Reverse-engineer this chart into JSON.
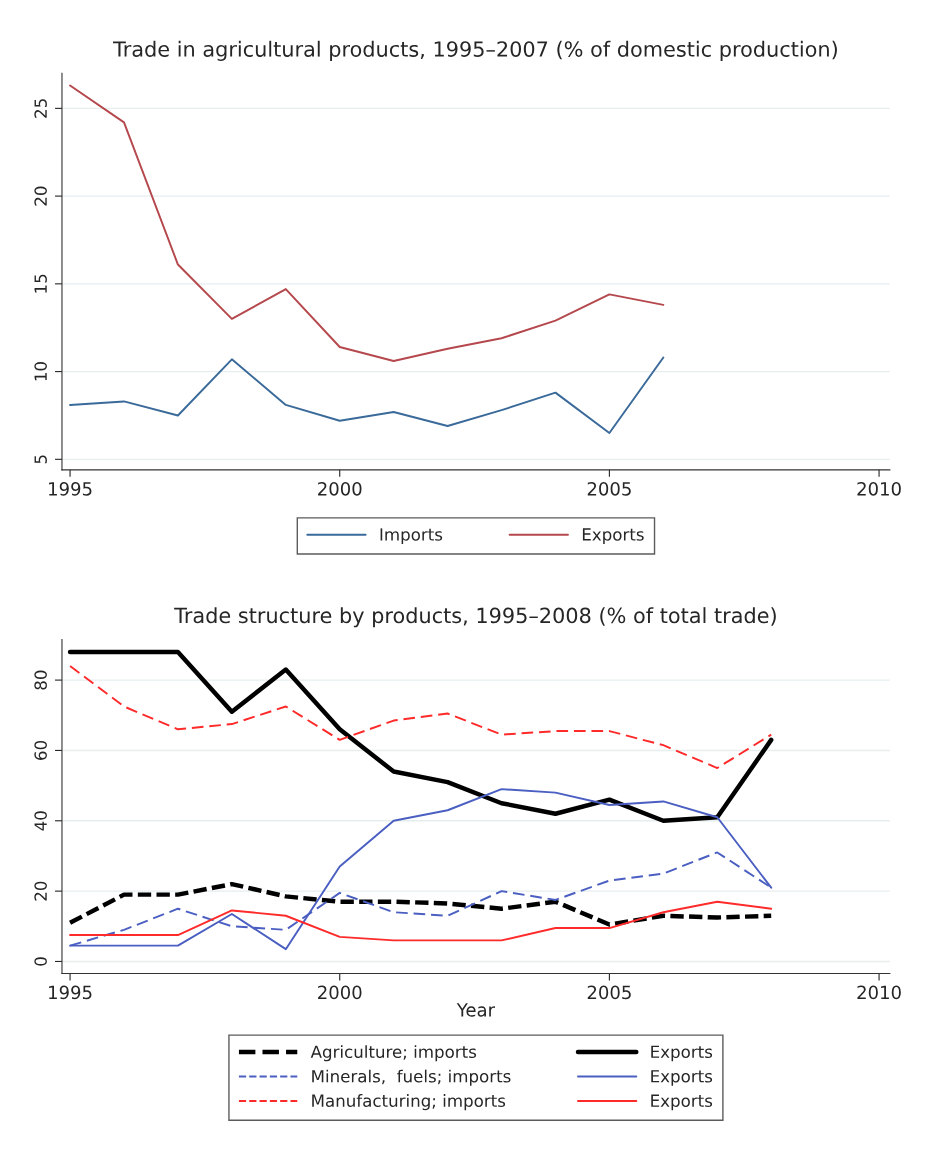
{
  "chart_data": [
    {
      "type": "line",
      "title": "Trade in agricultural products, 1995–2007 (% of domestic production)",
      "x": [
        1995,
        1996,
        1997,
        1998,
        1999,
        2000,
        2001,
        2002,
        2003,
        2004,
        2005,
        2006
      ],
      "series": [
        {
          "name": "Imports",
          "color": "#3a6a9a",
          "line_style": "solid",
          "values": [
            8.1,
            8.3,
            7.5,
            10.7,
            8.1,
            7.2,
            7.7,
            6.9,
            7.8,
            8.8,
            6.5,
            10.8
          ]
        },
        {
          "name": "Exports",
          "color": "#b5484d",
          "line_style": "solid",
          "values": [
            26.3,
            24.2,
            16.1,
            13.0,
            14.7,
            11.4,
            10.6,
            11.3,
            11.9,
            12.9,
            14.4,
            13.8
          ]
        }
      ],
      "xlim": [
        1994.85,
        2010.2
      ],
      "ylim": [
        4.4,
        27
      ],
      "xticks": [
        1995,
        2000,
        2005,
        2010
      ],
      "yticks": [
        5,
        10,
        15,
        20,
        25
      ],
      "grid": "y",
      "legend": "bottom"
    },
    {
      "type": "line",
      "title": "Trade structure by products, 1995–2008 (% of total trade)",
      "xlabel": "Year",
      "x": [
        1995,
        1996,
        1997,
        1998,
        1999,
        2000,
        2001,
        2002,
        2003,
        2004,
        2005,
        2006,
        2007,
        2008
      ],
      "series": [
        {
          "name": "Agriculture; imports",
          "color": "#000000",
          "line_style": "dashed",
          "values": [
            11,
            19,
            19,
            22,
            18.5,
            17,
            17,
            16.5,
            15,
            17,
            10.5,
            13,
            12.5,
            13
          ]
        },
        {
          "name": "Exports",
          "color": "#000000",
          "line_style": "solid",
          "values": [
            88,
            88,
            88,
            71,
            83,
            66,
            54,
            51,
            45,
            42,
            46,
            40,
            41,
            63
          ]
        },
        {
          "name": "Minerals,  fuels; imports",
          "color": "#4a5fc1",
          "line_style": "dashed",
          "values": [
            4.5,
            9,
            15,
            10,
            9,
            19.5,
            14,
            13,
            20,
            17.5,
            23,
            25,
            31,
            21
          ]
        },
        {
          "name": "Exports",
          "color": "#4a5fc1",
          "line_style": "solid",
          "values": [
            4.5,
            4.5,
            4.5,
            13.5,
            3.5,
            27,
            40,
            43,
            49,
            48,
            44.5,
            45.5,
            41,
            21
          ]
        },
        {
          "name": "Manufacturing; imports",
          "color": "#ff2a2a",
          "line_style": "dashed",
          "values": [
            84,
            72.5,
            66,
            67.5,
            72.5,
            63,
            68.5,
            70.5,
            64.5,
            65.5,
            65.5,
            61.5,
            55,
            64.5
          ]
        },
        {
          "name": "Exports",
          "color": "#ff2a2a",
          "line_style": "solid",
          "values": [
            7.5,
            7.5,
            7.5,
            14.5,
            13,
            7,
            6,
            6,
            6,
            9.5,
            9.5,
            14,
            17,
            15
          ]
        }
      ],
      "xlim": [
        1994.85,
        2010.2
      ],
      "ylim": [
        -3.4,
        91.5
      ],
      "xticks": [
        1995,
        2000,
        2005,
        2010
      ],
      "yticks": [
        0,
        20,
        40,
        60,
        80
      ],
      "grid": "y",
      "legend": "bottom"
    }
  ]
}
